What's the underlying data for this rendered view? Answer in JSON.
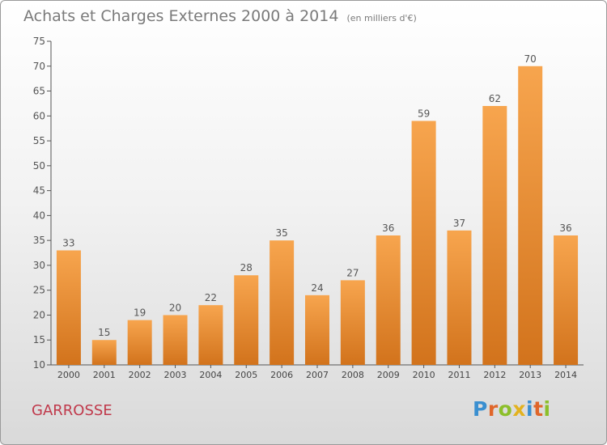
{
  "title": "Achats et Charges Externes 2000 à 2014",
  "subtitle": "(en milliers d'€)",
  "town": "GARROSSE",
  "logo": "Proxiti",
  "colors": {
    "bar_light": "#f7a54e",
    "bar_dark": "#d2731c",
    "town": "#c0394b"
  },
  "chart_data": {
    "type": "bar",
    "title": "Achats et Charges Externes 2000 à 2014",
    "subtitle": "(en milliers d'€)",
    "xlabel": "",
    "ylabel": "",
    "ylim": [
      10,
      75
    ],
    "yticks": [
      10,
      15,
      20,
      25,
      30,
      35,
      40,
      45,
      50,
      55,
      60,
      65,
      70,
      75
    ],
    "grid": false,
    "categories": [
      "2000",
      "2001",
      "2002",
      "2003",
      "2004",
      "2005",
      "2006",
      "2007",
      "2008",
      "2009",
      "2010",
      "2011",
      "2012",
      "2013",
      "2014"
    ],
    "values": [
      33,
      15,
      19,
      20,
      22,
      28,
      35,
      24,
      27,
      36,
      59,
      37,
      62,
      70,
      36
    ]
  }
}
